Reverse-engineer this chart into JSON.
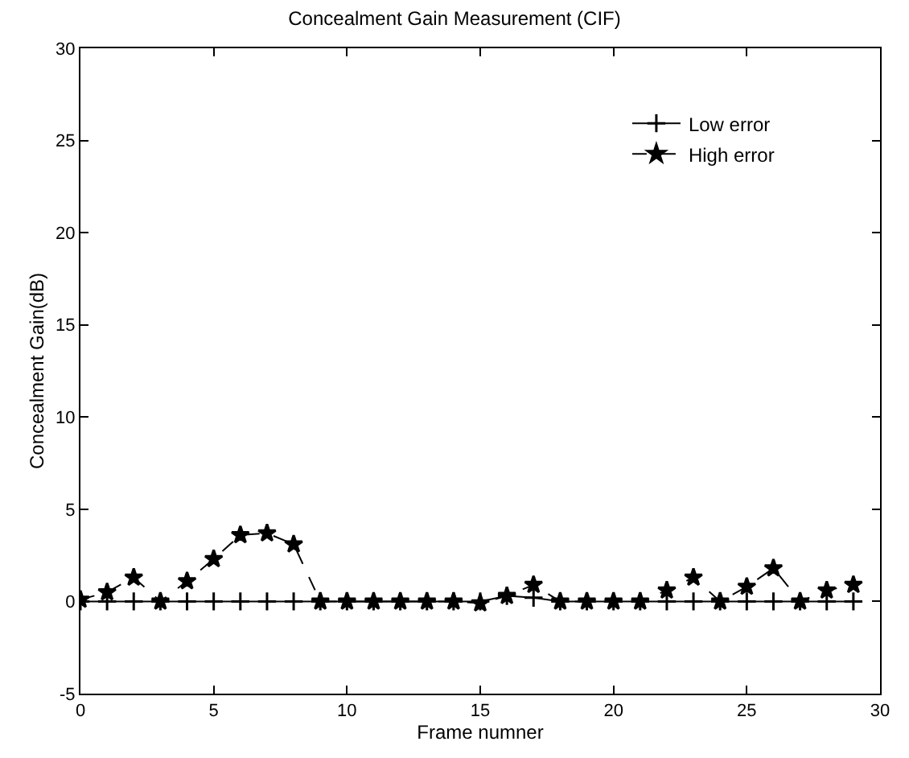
{
  "chart_data": {
    "type": "line",
    "title": "Concealment Gain Measurement (CIF)",
    "xlabel": "Frame numner",
    "ylabel": "Concealment Gain(dB)",
    "x": [
      0,
      1,
      2,
      3,
      4,
      5,
      6,
      7,
      8,
      9,
      10,
      11,
      12,
      13,
      14,
      15,
      16,
      17,
      18,
      19,
      20,
      21,
      22,
      23,
      24,
      25,
      26,
      27,
      28,
      29
    ],
    "series": [
      {
        "name": "Low error",
        "color": "#000000",
        "marker": "cross",
        "line_style": "solid",
        "values": [
          0,
          0,
          0,
          0,
          0,
          0,
          0,
          0,
          0,
          0,
          0,
          0,
          0,
          0,
          0,
          0,
          0.3,
          0.2,
          0,
          0,
          0,
          0,
          0,
          0,
          0,
          0,
          0,
          0,
          0,
          0
        ]
      },
      {
        "name": "High error",
        "color": "#000000",
        "marker": "star",
        "line_style": "dashed",
        "values": [
          0.1,
          0.5,
          1.3,
          0,
          1.1,
          2.3,
          3.6,
          3.7,
          3.1,
          0,
          0,
          0,
          0,
          0,
          0,
          -0.1,
          0.3,
          0.9,
          0,
          0,
          0,
          0,
          0.6,
          1.3,
          0,
          0.8,
          1.8,
          0,
          0.6,
          0.9
        ]
      }
    ],
    "xlim": [
      0,
      30
    ],
    "xticks": [
      0,
      5,
      10,
      15,
      20,
      25,
      30
    ],
    "ylim": [
      -5,
      30
    ],
    "yticks": [
      -5,
      0,
      5,
      10,
      15,
      20,
      25,
      30
    ],
    "legend": "top right"
  }
}
